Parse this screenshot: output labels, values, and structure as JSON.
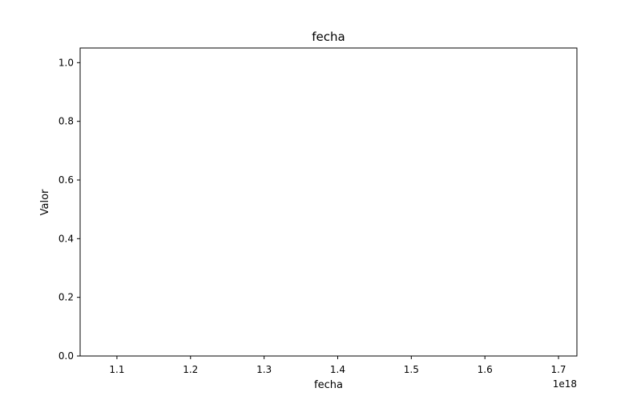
{
  "chart_data": {
    "type": "line",
    "title": "fecha",
    "xlabel": "fecha",
    "ylabel": "Valor",
    "x_offset_label": "1e18",
    "xlim": [
      1.05,
      1.725
    ],
    "ylim": [
      0,
      1.05
    ],
    "x_ticks": [
      "1.1",
      "1.2",
      "1.3",
      "1.4",
      "1.5",
      "1.6",
      "1.7"
    ],
    "x_tick_values": [
      1.1,
      1.2,
      1.3,
      1.4,
      1.5,
      1.6,
      1.7
    ],
    "y_ticks": [
      "0.0",
      "0.2",
      "0.4",
      "0.6",
      "0.8",
      "1.0"
    ],
    "y_tick_values": [
      0,
      0.2,
      0.4,
      0.6,
      0.8,
      1.0
    ],
    "series": [],
    "grid": false,
    "legend": "none"
  }
}
